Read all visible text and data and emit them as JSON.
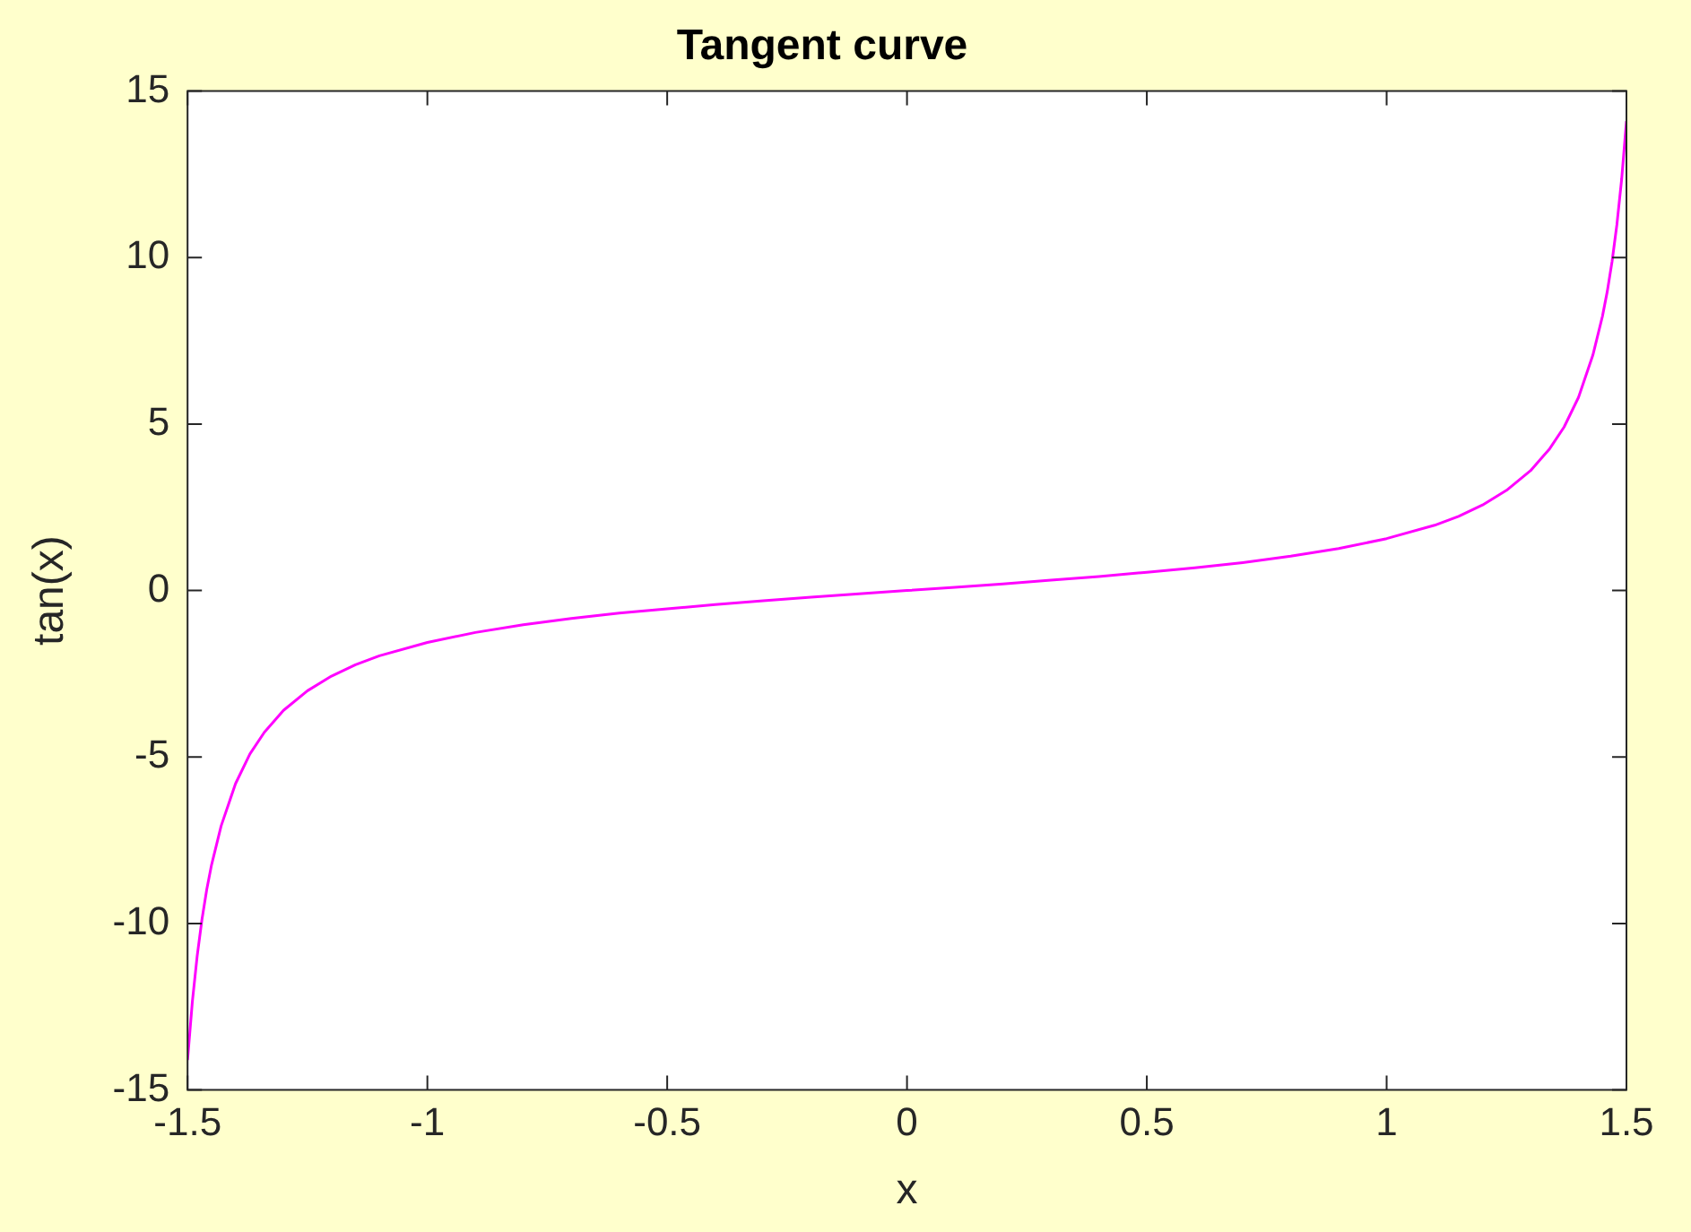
{
  "chart_data": {
    "type": "line",
    "title": "Tangent curve",
    "xlabel": "x",
    "ylabel": "tan(x)",
    "x": [
      -1.5,
      -1.49,
      -1.48,
      -1.47,
      -1.46,
      -1.45,
      -1.43,
      -1.4,
      -1.37,
      -1.34,
      -1.3,
      -1.25,
      -1.2,
      -1.15,
      -1.1,
      -1.0,
      -0.9,
      -0.8,
      -0.7,
      -0.6,
      -0.5,
      -0.4,
      -0.3,
      -0.2,
      -0.1,
      0,
      0.1,
      0.2,
      0.3,
      0.4,
      0.5,
      0.6,
      0.7,
      0.8,
      0.9,
      1.0,
      1.1,
      1.15,
      1.2,
      1.25,
      1.3,
      1.34,
      1.37,
      1.4,
      1.43,
      1.45,
      1.46,
      1.47,
      1.48,
      1.49,
      1.5
    ],
    "series": [
      {
        "color": "#ff00ff",
        "values": [
          -14.1,
          -12.35,
          -10.98,
          -9.88,
          -8.98,
          -8.24,
          -7.07,
          -5.8,
          -4.91,
          -4.26,
          -3.6,
          -3.01,
          -2.57,
          -2.23,
          -1.96,
          -1.56,
          -1.26,
          -1.03,
          -0.84,
          -0.68,
          -0.55,
          -0.42,
          -0.31,
          -0.2,
          -0.1,
          0,
          0.1,
          0.2,
          0.31,
          0.42,
          0.55,
          0.68,
          0.84,
          1.03,
          1.26,
          1.56,
          1.96,
          2.23,
          2.57,
          3.01,
          3.6,
          4.26,
          4.91,
          5.8,
          7.07,
          8.24,
          8.98,
          9.88,
          10.98,
          12.35,
          14.1
        ]
      }
    ],
    "xlim": [
      -1.5,
      1.5
    ],
    "xticks": [
      -1.5,
      -1,
      -0.5,
      0,
      0.5,
      1,
      1.5
    ],
    "ylim": [
      -15,
      15
    ],
    "yticks": [
      -15,
      -10,
      -5,
      0,
      5,
      10,
      15
    ],
    "grid": false,
    "legend": false,
    "marker": "none",
    "line_style": "solid"
  }
}
